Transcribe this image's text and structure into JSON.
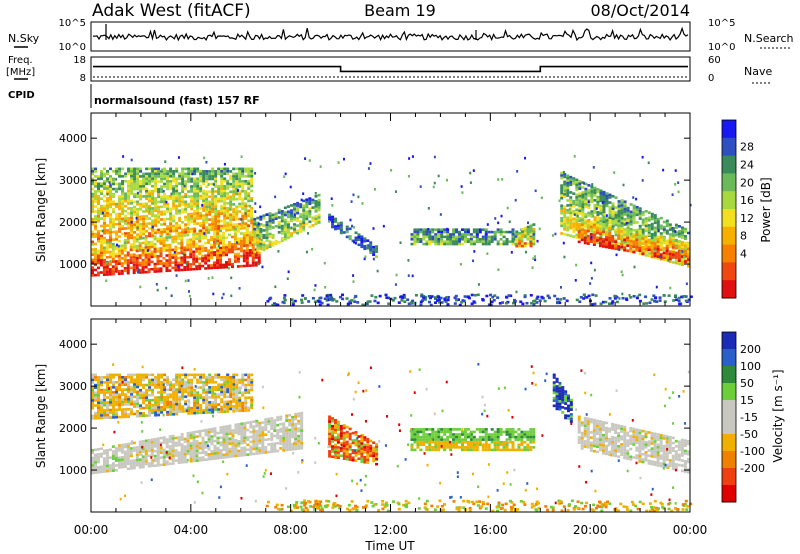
{
  "header": {
    "radar": "Adak West (fitACF)",
    "beam": "Beam 19",
    "date": "08/Oct/2014"
  },
  "noise_panel": {
    "left_label": "N.Sky",
    "right_label": "N.Search",
    "left_ticks": [
      "10^5",
      "10^0"
    ],
    "right_ticks": [
      "10^5",
      "10^0"
    ]
  },
  "freq_panel": {
    "left_label_line1": "Freq.",
    "left_label_line2": "[MHz]",
    "right_label": "Nave",
    "left_ticks": [
      "18",
      "8"
    ],
    "right_ticks": [
      "60",
      "0"
    ]
  },
  "cpid": {
    "label": "CPID",
    "text": "normalsound (fast) 157 RF"
  },
  "power_panel": {
    "ylabel": "Slant Range [km]",
    "yticks": [
      "4000",
      "3000",
      "2000",
      "1000"
    ],
    "colorbar_label": "Power [dB]",
    "colorbar_ticks": [
      "28",
      "24",
      "20",
      "16",
      "12",
      "8",
      "4"
    ],
    "colors": [
      "#1818f0",
      "#2e4fc0",
      "#3a8a5a",
      "#6aba5a",
      "#a8d840",
      "#f0e020",
      "#f8b000",
      "#f88000",
      "#f04810",
      "#e01010"
    ]
  },
  "velocity_panel": {
    "ylabel": "Slant Range [km]",
    "yticks": [
      "4000",
      "3000",
      "2000",
      "1000"
    ],
    "colorbar_label": "Velocity [m s⁻¹]",
    "colorbar_ticks": [
      "200",
      "100",
      "50",
      "15",
      "-15",
      "-50",
      "-100",
      "-200"
    ],
    "colors": [
      "#1c2ab8",
      "#2a60c8",
      "#2e8a3a",
      "#6ccf3a",
      "#c8c8c0",
      "#c8c8c0",
      "#f0b000",
      "#f08000",
      "#f04010",
      "#e00000"
    ]
  },
  "xaxis": {
    "label": "Time UT",
    "ticks": [
      "00:00",
      "04:00",
      "08:00",
      "12:00",
      "16:00",
      "20:00",
      "00:00"
    ]
  },
  "chart_data": {
    "type": "heatmap",
    "x_unit": "hours UT",
    "xlim": [
      0,
      24
    ],
    "ylim": [
      0,
      4600
    ],
    "frequency_steps": [
      {
        "start": 0,
        "end": 10,
        "value": 14
      },
      {
        "start": 10,
        "end": 18,
        "value": 12
      },
      {
        "start": 18,
        "end": 24,
        "value": 14
      }
    ],
    "power_regions": [
      {
        "t0": 0.0,
        "t1": 6.8,
        "r_low0": 700,
        "r_low1": 950,
        "r_high0": 1500,
        "r_high1": 2000,
        "level": 0.9
      },
      {
        "t0": 0.0,
        "t1": 6.5,
        "r_low0": 1500,
        "r_low1": 1900,
        "r_high0": 3300,
        "r_high1": 3300,
        "level": 0.6
      },
      {
        "t0": 6.5,
        "t1": 9.2,
        "r_low0": 1200,
        "r_low1": 2000,
        "r_high0": 2100,
        "r_high1": 2700,
        "level": 0.45
      },
      {
        "t0": 9.5,
        "t1": 11.5,
        "r_low0": 1900,
        "r_low1": 1100,
        "r_high0": 2200,
        "r_high1": 1400,
        "level": 0.25
      },
      {
        "t0": 12.8,
        "t1": 17.8,
        "r_low0": 1450,
        "r_low1": 1450,
        "r_high0": 1850,
        "r_high1": 1850,
        "level": 0.35
      },
      {
        "t0": 17.0,
        "t1": 17.8,
        "r_low0": 1400,
        "r_low1": 1400,
        "r_high0": 1800,
        "r_high1": 2000,
        "level": 0.7
      },
      {
        "t0": 18.8,
        "t1": 24.0,
        "r_low0": 1700,
        "r_low1": 900,
        "r_high0": 3200,
        "r_high1": 1800,
        "level": 0.5
      },
      {
        "t0": 19.5,
        "t1": 24.0,
        "r_low0": 1500,
        "r_low1": 1000,
        "r_high0": 2100,
        "r_high1": 1500,
        "level": 0.9
      }
    ],
    "velocity_regions": [
      {
        "t0": 0.0,
        "t1": 8.5,
        "r_low0": 900,
        "r_low1": 1500,
        "r_high0": 1500,
        "r_high1": 2400,
        "class": "ground"
      },
      {
        "t0": 0.0,
        "t1": 6.5,
        "r_low0": 2200,
        "r_low1": 2400,
        "r_high0": 3300,
        "r_high1": 3300,
        "class": "mixed"
      },
      {
        "t0": 9.5,
        "t1": 11.5,
        "r_low0": 1300,
        "r_low1": 1100,
        "r_high0": 2300,
        "r_high1": 1600,
        "class": "away"
      },
      {
        "t0": 12.8,
        "t1": 17.8,
        "r_low0": 1450,
        "r_low1": 1450,
        "r_high0": 2000,
        "r_high1": 2000,
        "class": "mixed_green"
      },
      {
        "t0": 18.5,
        "t1": 19.3,
        "r_low0": 2500,
        "r_low1": 2000,
        "r_high0": 3300,
        "r_high1": 2600,
        "class": "toward"
      },
      {
        "t0": 19.5,
        "t1": 24.0,
        "r_low0": 1500,
        "r_low1": 900,
        "r_high0": 2300,
        "r_high1": 1700,
        "class": "ground"
      }
    ]
  }
}
